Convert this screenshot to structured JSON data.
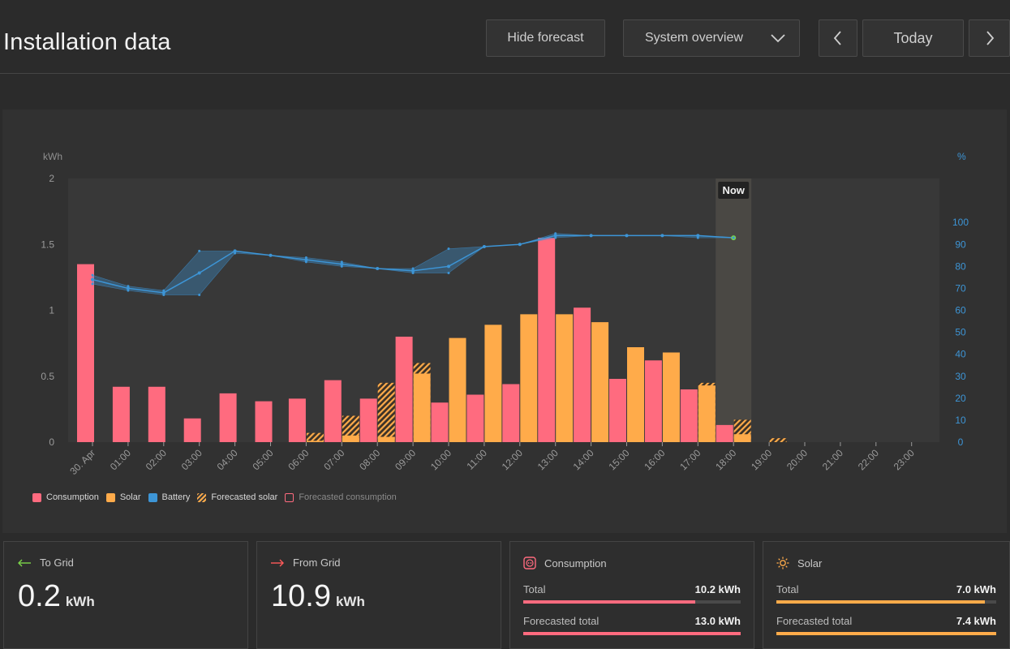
{
  "header": {
    "title": "Installation data"
  },
  "toolbar": {
    "hide_forecast": "Hide forecast",
    "overview_select": "System overview",
    "today": "Today"
  },
  "colors": {
    "consumption": "#ff6b7f",
    "solar": "#ffab4a",
    "battery": "#3d95d6",
    "now_dot": "#7bd44a"
  },
  "chart_data": {
    "type": "bar",
    "y_left_unit": "kWh",
    "y_right_unit": "%",
    "y_left_ticks": [
      "0",
      "0.5",
      "1",
      "1.5",
      "2"
    ],
    "y_left_range": [
      0,
      2
    ],
    "y_right_ticks": [
      "0",
      "10",
      "20",
      "30",
      "40",
      "50",
      "60",
      "70",
      "80",
      "90",
      "100"
    ],
    "y_right_range": [
      0,
      120
    ],
    "now_label": "Now",
    "now_index": 18,
    "categories": [
      "30. Apr",
      "01:00",
      "02:00",
      "03:00",
      "04:00",
      "05:00",
      "06:00",
      "07:00",
      "08:00",
      "09:00",
      "10:00",
      "11:00",
      "12:00",
      "13:00",
      "14:00",
      "15:00",
      "16:00",
      "17:00",
      "18:00",
      "19:00",
      "20:00",
      "21:00",
      "22:00",
      "23:00"
    ],
    "series": [
      {
        "name": "Consumption",
        "values": [
          1.35,
          0.42,
          0.42,
          0.18,
          0.37,
          0.31,
          0.33,
          0.47,
          0.33,
          0.8,
          0.3,
          0.36,
          0.44,
          1.55,
          1.02,
          0.48,
          0.62,
          0.4,
          0.13,
          null,
          null,
          null,
          null,
          null
        ]
      },
      {
        "name": "Solar",
        "values": [
          0,
          0,
          0,
          0,
          0,
          0,
          0.01,
          0.05,
          0.04,
          0.52,
          0.79,
          0.89,
          0.97,
          0.97,
          0.91,
          0.72,
          0.68,
          0.43,
          0.06,
          null,
          null,
          null,
          null,
          null
        ]
      },
      {
        "name": "Forecasted solar",
        "values": [
          0,
          0,
          0,
          0,
          0,
          0,
          0.07,
          0.2,
          0.45,
          0.6,
          0,
          0,
          0,
          0,
          0,
          0,
          0,
          0.45,
          0.17,
          0.03,
          0,
          0,
          0,
          0
        ]
      },
      {
        "name": "Battery",
        "values": [
          74,
          70,
          68,
          77,
          87,
          85,
          83,
          81,
          79,
          78,
          80,
          89,
          90,
          94,
          94,
          94,
          94,
          94,
          93,
          null,
          null,
          null,
          null,
          null
        ],
        "min": [
          72,
          69,
          67,
          67,
          86,
          85,
          82,
          80,
          79,
          77,
          77,
          89,
          90,
          93,
          94,
          94,
          94,
          93,
          93,
          null,
          null,
          null,
          null,
          null
        ],
        "max": [
          76,
          71,
          69,
          87,
          87,
          85,
          84,
          82,
          79,
          79,
          88,
          89,
          90,
          95,
          94,
          94,
          94,
          94,
          93,
          null,
          null,
          null,
          null,
          null
        ]
      }
    ],
    "legend": [
      {
        "label": "Consumption",
        "color": "#ff6b7f"
      },
      {
        "label": "Solar",
        "color": "#ffab4a"
      },
      {
        "label": "Battery",
        "color": "#3d95d6"
      },
      {
        "label": "Forecasted solar",
        "color": "#ffab4a"
      },
      {
        "label": "Forecasted consumption",
        "color": "#ff6b7f"
      }
    ]
  },
  "cards": {
    "to_grid": {
      "label": "To Grid",
      "value": "0.2",
      "unit": "kWh"
    },
    "from_grid": {
      "label": "From Grid",
      "value": "10.9",
      "unit": "kWh"
    },
    "consumption": {
      "label": "Consumption",
      "total_label": "Total",
      "total_value": "10.2 kWh",
      "total_fraction": 0.79,
      "forecast_label": "Forecasted total",
      "forecast_value": "13.0 kWh",
      "forecast_fraction": 1.0
    },
    "solar": {
      "label": "Solar",
      "total_label": "Total",
      "total_value": "7.0 kWh",
      "total_fraction": 0.95,
      "forecast_label": "Forecasted total",
      "forecast_value": "7.4 kWh",
      "forecast_fraction": 1.0
    }
  }
}
